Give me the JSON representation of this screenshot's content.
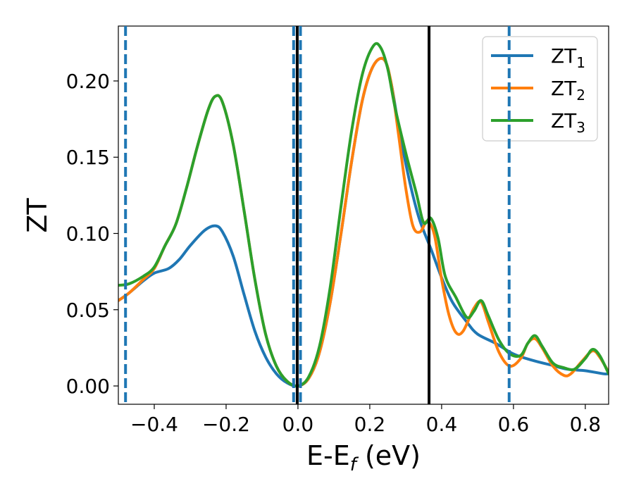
{
  "chart_data": {
    "type": "line",
    "xlabel_main": "E-E",
    "xlabel_sub": "f",
    "xlabel_unit": " (eV)",
    "ylabel": "ZT",
    "xlim": [
      -0.5,
      0.865
    ],
    "ylim": [
      -0.012,
      0.236
    ],
    "xticks": [
      -0.4,
      -0.2,
      0.0,
      0.2,
      0.4,
      0.6,
      0.8
    ],
    "xtick_labels": [
      "−0.4",
      "−0.2",
      "0.0",
      "0.2",
      "0.4",
      "0.6",
      "0.8"
    ],
    "yticks": [
      0.0,
      0.05,
      0.1,
      0.15,
      0.2
    ],
    "ytick_labels": [
      "0.00",
      "0.05",
      "0.10",
      "0.15",
      "0.20"
    ],
    "legend_position": "top-right",
    "series": [
      {
        "name": "ZT",
        "name_sub": "1",
        "color": "#1f77b4",
        "points": [
          [
            -0.5,
            0.056
          ],
          [
            -0.47,
            0.061
          ],
          [
            -0.43,
            0.069
          ],
          [
            -0.4,
            0.074
          ],
          [
            -0.36,
            0.077
          ],
          [
            -0.33,
            0.083
          ],
          [
            -0.3,
            0.092
          ],
          [
            -0.26,
            0.102
          ],
          [
            -0.23,
            0.105
          ],
          [
            -0.21,
            0.101
          ],
          [
            -0.18,
            0.085
          ],
          [
            -0.15,
            0.06
          ],
          [
            -0.12,
            0.036
          ],
          [
            -0.09,
            0.019
          ],
          [
            -0.06,
            0.008
          ],
          [
            -0.03,
            0.002
          ],
          [
            0.0,
            0.0
          ],
          [
            0.03,
            0.005
          ],
          [
            0.06,
            0.022
          ],
          [
            0.09,
            0.055
          ],
          [
            0.12,
            0.1
          ],
          [
            0.15,
            0.148
          ],
          [
            0.18,
            0.188
          ],
          [
            0.21,
            0.21
          ],
          [
            0.24,
            0.214
          ],
          [
            0.26,
            0.198
          ],
          [
            0.28,
            0.17
          ],
          [
            0.3,
            0.146
          ],
          [
            0.32,
            0.125
          ],
          [
            0.34,
            0.108
          ],
          [
            0.37,
            0.09
          ],
          [
            0.4,
            0.071
          ],
          [
            0.43,
            0.055
          ],
          [
            0.47,
            0.042
          ],
          [
            0.5,
            0.034
          ],
          [
            0.55,
            0.028
          ],
          [
            0.6,
            0.021
          ],
          [
            0.65,
            0.017
          ],
          [
            0.7,
            0.014
          ],
          [
            0.75,
            0.011
          ],
          [
            0.8,
            0.01
          ],
          [
            0.85,
            0.008
          ],
          [
            0.865,
            0.008
          ]
        ]
      },
      {
        "name": "ZT",
        "name_sub": "2",
        "color": "#ff7f0e",
        "points": [
          [
            -0.5,
            0.056
          ],
          [
            -0.47,
            0.061
          ],
          [
            -0.43,
            0.07
          ],
          [
            -0.4,
            0.077
          ],
          [
            -0.37,
            0.092
          ],
          [
            -0.34,
            0.106
          ],
          [
            -0.31,
            0.13
          ],
          [
            -0.28,
            0.157
          ],
          [
            -0.25,
            0.181
          ],
          [
            -0.23,
            0.19
          ],
          [
            -0.21,
            0.186
          ],
          [
            -0.18,
            0.158
          ],
          [
            -0.15,
            0.115
          ],
          [
            -0.12,
            0.07
          ],
          [
            -0.09,
            0.034
          ],
          [
            -0.06,
            0.013
          ],
          [
            -0.03,
            0.003
          ],
          [
            0.0,
            0.0
          ],
          [
            0.03,
            0.005
          ],
          [
            0.06,
            0.022
          ],
          [
            0.09,
            0.055
          ],
          [
            0.12,
            0.1
          ],
          [
            0.15,
            0.148
          ],
          [
            0.18,
            0.188
          ],
          [
            0.21,
            0.21
          ],
          [
            0.24,
            0.214
          ],
          [
            0.26,
            0.198
          ],
          [
            0.28,
            0.165
          ],
          [
            0.3,
            0.13
          ],
          [
            0.32,
            0.105
          ],
          [
            0.34,
            0.101
          ],
          [
            0.36,
            0.108
          ],
          [
            0.38,
            0.099
          ],
          [
            0.4,
            0.07
          ],
          [
            0.42,
            0.047
          ],
          [
            0.44,
            0.035
          ],
          [
            0.46,
            0.036
          ],
          [
            0.49,
            0.051
          ],
          [
            0.51,
            0.055
          ],
          [
            0.53,
            0.042
          ],
          [
            0.56,
            0.022
          ],
          [
            0.59,
            0.013
          ],
          [
            0.62,
            0.018
          ],
          [
            0.64,
            0.028
          ],
          [
            0.66,
            0.031
          ],
          [
            0.68,
            0.025
          ],
          [
            0.71,
            0.013
          ],
          [
            0.74,
            0.007
          ],
          [
            0.76,
            0.008
          ],
          [
            0.79,
            0.016
          ],
          [
            0.82,
            0.023
          ],
          [
            0.84,
            0.019
          ],
          [
            0.865,
            0.009
          ]
        ]
      },
      {
        "name": "ZT",
        "name_sub": "3",
        "color": "#2ca02c",
        "points": [
          [
            -0.5,
            0.066
          ],
          [
            -0.47,
            0.067
          ],
          [
            -0.43,
            0.072
          ],
          [
            -0.4,
            0.078
          ],
          [
            -0.37,
            0.092
          ],
          [
            -0.34,
            0.106
          ],
          [
            -0.31,
            0.13
          ],
          [
            -0.28,
            0.157
          ],
          [
            -0.25,
            0.181
          ],
          [
            -0.23,
            0.19
          ],
          [
            -0.21,
            0.186
          ],
          [
            -0.18,
            0.158
          ],
          [
            -0.15,
            0.115
          ],
          [
            -0.12,
            0.07
          ],
          [
            -0.09,
            0.034
          ],
          [
            -0.06,
            0.013
          ],
          [
            -0.03,
            0.003
          ],
          [
            0.0,
            0.0
          ],
          [
            0.03,
            0.006
          ],
          [
            0.06,
            0.026
          ],
          [
            0.09,
            0.065
          ],
          [
            0.12,
            0.118
          ],
          [
            0.15,
            0.168
          ],
          [
            0.18,
            0.205
          ],
          [
            0.21,
            0.223
          ],
          [
            0.23,
            0.222
          ],
          [
            0.25,
            0.208
          ],
          [
            0.27,
            0.183
          ],
          [
            0.3,
            0.153
          ],
          [
            0.33,
            0.126
          ],
          [
            0.35,
            0.107
          ],
          [
            0.37,
            0.11
          ],
          [
            0.39,
            0.097
          ],
          [
            0.41,
            0.072
          ],
          [
            0.44,
            0.058
          ],
          [
            0.47,
            0.045
          ],
          [
            0.49,
            0.049
          ],
          [
            0.51,
            0.056
          ],
          [
            0.53,
            0.046
          ],
          [
            0.56,
            0.03
          ],
          [
            0.59,
            0.021
          ],
          [
            0.62,
            0.02
          ],
          [
            0.64,
            0.028
          ],
          [
            0.66,
            0.033
          ],
          [
            0.68,
            0.026
          ],
          [
            0.71,
            0.015
          ],
          [
            0.74,
            0.012
          ],
          [
            0.77,
            0.011
          ],
          [
            0.8,
            0.018
          ],
          [
            0.82,
            0.024
          ],
          [
            0.84,
            0.02
          ],
          [
            0.865,
            0.008
          ]
        ]
      }
    ],
    "vlines_dashed": {
      "color": "#1f77b4",
      "x": [
        -0.48,
        -0.012,
        0.007,
        0.588
      ]
    },
    "vlines_solid": {
      "color": "#000000",
      "x": [
        -0.002,
        0.365
      ]
    }
  }
}
